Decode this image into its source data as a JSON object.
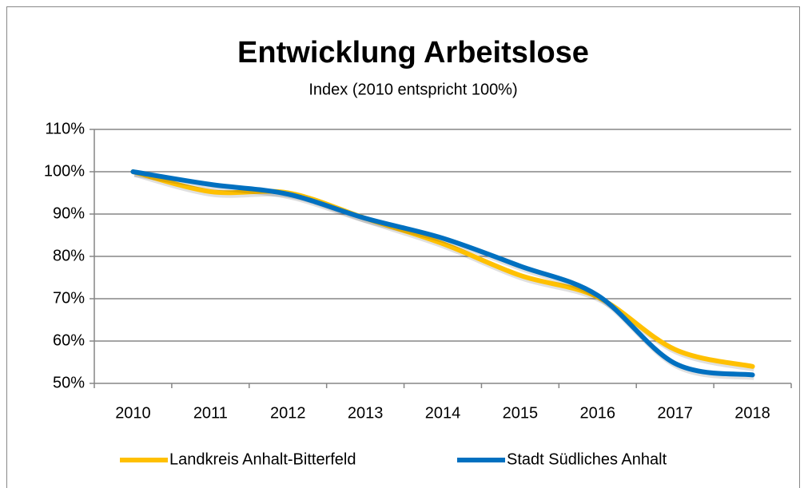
{
  "chart_data": {
    "type": "line",
    "title": "Entwicklung Arbeitslose",
    "subtitle": "Index (2010 entspricht 100%)",
    "categories": [
      "2010",
      "2011",
      "2012",
      "2013",
      "2014",
      "2015",
      "2016",
      "2017",
      "2018"
    ],
    "series": [
      {
        "name": "Landkreis Anhalt-Bitterfeld",
        "color": "#ffc000",
        "values": [
          100,
          95.3,
          95,
          89,
          83,
          75.5,
          70.4,
          58,
          54
        ]
      },
      {
        "name": "Stadt Südliches Anhalt",
        "color": "#0070c0",
        "values": [
          100,
          97,
          94.7,
          89,
          84.3,
          77.7,
          70.8,
          54.7,
          52
        ]
      }
    ],
    "ylim": [
      50,
      110
    ],
    "yticks": [
      {
        "value": 50,
        "label": "50%"
      },
      {
        "value": 60,
        "label": "60%"
      },
      {
        "value": 70,
        "label": "70%"
      },
      {
        "value": 80,
        "label": "80%"
      },
      {
        "value": 90,
        "label": "90%"
      },
      {
        "value": 100,
        "label": "100%"
      },
      {
        "value": 110,
        "label": "110%"
      }
    ],
    "grid": true,
    "legend": "bottom"
  }
}
